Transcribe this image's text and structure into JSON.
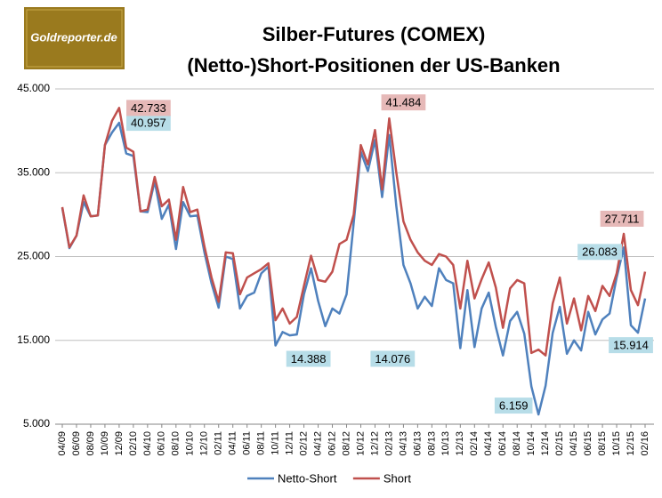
{
  "chart_data": {
    "type": "line",
    "logo": "Goldreporter.de",
    "title": "Silber-Futures (COMEX)",
    "subtitle": "(Netto-)Short-Positionen der US-Banken",
    "categories": [
      "04/09",
      null,
      "06/09",
      null,
      "08/09",
      null,
      "10/09",
      null,
      "12/09",
      null,
      "02/10",
      null,
      "04/10",
      null,
      "06/10",
      null,
      "08/10",
      null,
      "10/10",
      null,
      "12/10",
      null,
      "02/11",
      null,
      "04/11",
      null,
      "06/11",
      null,
      "08/11",
      null,
      "10/11",
      null,
      "12/11",
      null,
      "02/12",
      null,
      "04/12",
      null,
      "06/12",
      null,
      "08/12",
      null,
      "10/12",
      null,
      "12/12",
      null,
      "02/13",
      null,
      "04/13",
      null,
      "06/13",
      null,
      "08/13",
      null,
      "10/13",
      null,
      "12/13",
      null,
      "02/14",
      null,
      "04/14",
      null,
      "06/14",
      null,
      "08/14",
      null,
      "10/14",
      null,
      "12/14",
      null,
      "02/15",
      null,
      "04/15",
      null,
      "06/15",
      null,
      "08/15",
      null,
      "10/15",
      null,
      "12/15",
      null,
      "02/16"
    ],
    "series": [
      {
        "name": "Netto-Short",
        "color": "#4f81bd",
        "values": [
          30800,
          26000,
          27500,
          31500,
          29800,
          29900,
          38300,
          39800,
          40957,
          37300,
          37000,
          30400,
          30300,
          34000,
          29500,
          31200,
          25900,
          31500,
          29800,
          29900,
          25500,
          21800,
          18900,
          25000,
          24700,
          18800,
          20300,
          20700,
          23000,
          23800,
          14388,
          16000,
          15600,
          15700,
          20500,
          23600,
          19700,
          16700,
          18800,
          18200,
          20500,
          29000,
          37500,
          35200,
          38900,
          32100,
          39500,
          31000,
          24000,
          21800,
          18800,
          20200,
          19100,
          23600,
          22200,
          21800,
          14076,
          21000,
          14200,
          18800,
          20700,
          16600,
          13200,
          17300,
          18400,
          15800,
          9500,
          6159,
          9600,
          15900,
          19000,
          13400,
          15000,
          13800,
          18400,
          15700,
          17500,
          18200,
          22500,
          26083,
          16800,
          15914,
          20000
        ],
        "value_labels": [
          null,
          null,
          null,
          null,
          null,
          null,
          null,
          null,
          "40.957",
          null,
          null,
          null,
          null,
          null,
          null,
          null,
          null,
          null,
          null,
          null,
          null,
          null,
          null,
          null,
          null,
          null,
          null,
          null,
          null,
          null,
          "14.388",
          null,
          null,
          null,
          null,
          null,
          null,
          null,
          null,
          null,
          null,
          null,
          null,
          null,
          null,
          null,
          null,
          null,
          null,
          null,
          null,
          null,
          null,
          null,
          null,
          null,
          "14.076",
          null,
          null,
          null,
          null,
          null,
          null,
          null,
          null,
          null,
          null,
          "6.159",
          null,
          null,
          null,
          null,
          null,
          null,
          null,
          null,
          null,
          null,
          null,
          "26.083",
          null,
          "15.914",
          null
        ],
        "label_color": "#b7dde8"
      },
      {
        "name": "Short",
        "color": "#c0504d",
        "values": [
          30900,
          26100,
          27500,
          32300,
          29800,
          29900,
          38300,
          41200,
          42733,
          38000,
          37500,
          30400,
          30600,
          34500,
          31000,
          31800,
          27000,
          33300,
          30300,
          30600,
          26200,
          22500,
          19600,
          25500,
          25400,
          20500,
          22500,
          23000,
          23500,
          24200,
          17400,
          18800,
          17000,
          17800,
          21500,
          25100,
          22200,
          22000,
          23200,
          26500,
          27000,
          30000,
          38300,
          36000,
          40100,
          33000,
          41484,
          35000,
          29200,
          27000,
          25500,
          24500,
          24000,
          25300,
          25000,
          24000,
          18800,
          24500,
          20000,
          22300,
          24300,
          21300,
          16500,
          21200,
          22200,
          21800,
          13500,
          13900,
          13200,
          19400,
          22500,
          17000,
          20000,
          16200,
          20300,
          18500,
          21500,
          20300,
          23000,
          27711,
          21000,
          19200,
          23200
        ],
        "value_labels": [
          null,
          null,
          null,
          null,
          null,
          null,
          null,
          null,
          "42.733",
          null,
          null,
          null,
          null,
          null,
          null,
          null,
          null,
          null,
          null,
          null,
          null,
          null,
          null,
          null,
          null,
          null,
          null,
          null,
          null,
          null,
          null,
          null,
          null,
          null,
          null,
          null,
          null,
          null,
          null,
          null,
          null,
          null,
          null,
          null,
          null,
          null,
          "41.484",
          null,
          null,
          null,
          null,
          null,
          null,
          null,
          null,
          null,
          null,
          null,
          null,
          null,
          null,
          null,
          null,
          null,
          null,
          null,
          null,
          null,
          null,
          null,
          null,
          null,
          null,
          null,
          null,
          null,
          null,
          null,
          null,
          "27.711",
          null,
          null,
          null
        ],
        "label_color": "#e6b9b8"
      }
    ],
    "ylim": [
      5000,
      45000
    ],
    "yticks": [
      {
        "value": 5000,
        "label": "5.000"
      },
      {
        "value": 15000,
        "label": "15.000"
      },
      {
        "value": 25000,
        "label": "25.000"
      },
      {
        "value": 35000,
        "label": "35.000"
      },
      {
        "value": 45000,
        "label": "45.000"
      }
    ],
    "grid": true,
    "legend": "bottom"
  }
}
